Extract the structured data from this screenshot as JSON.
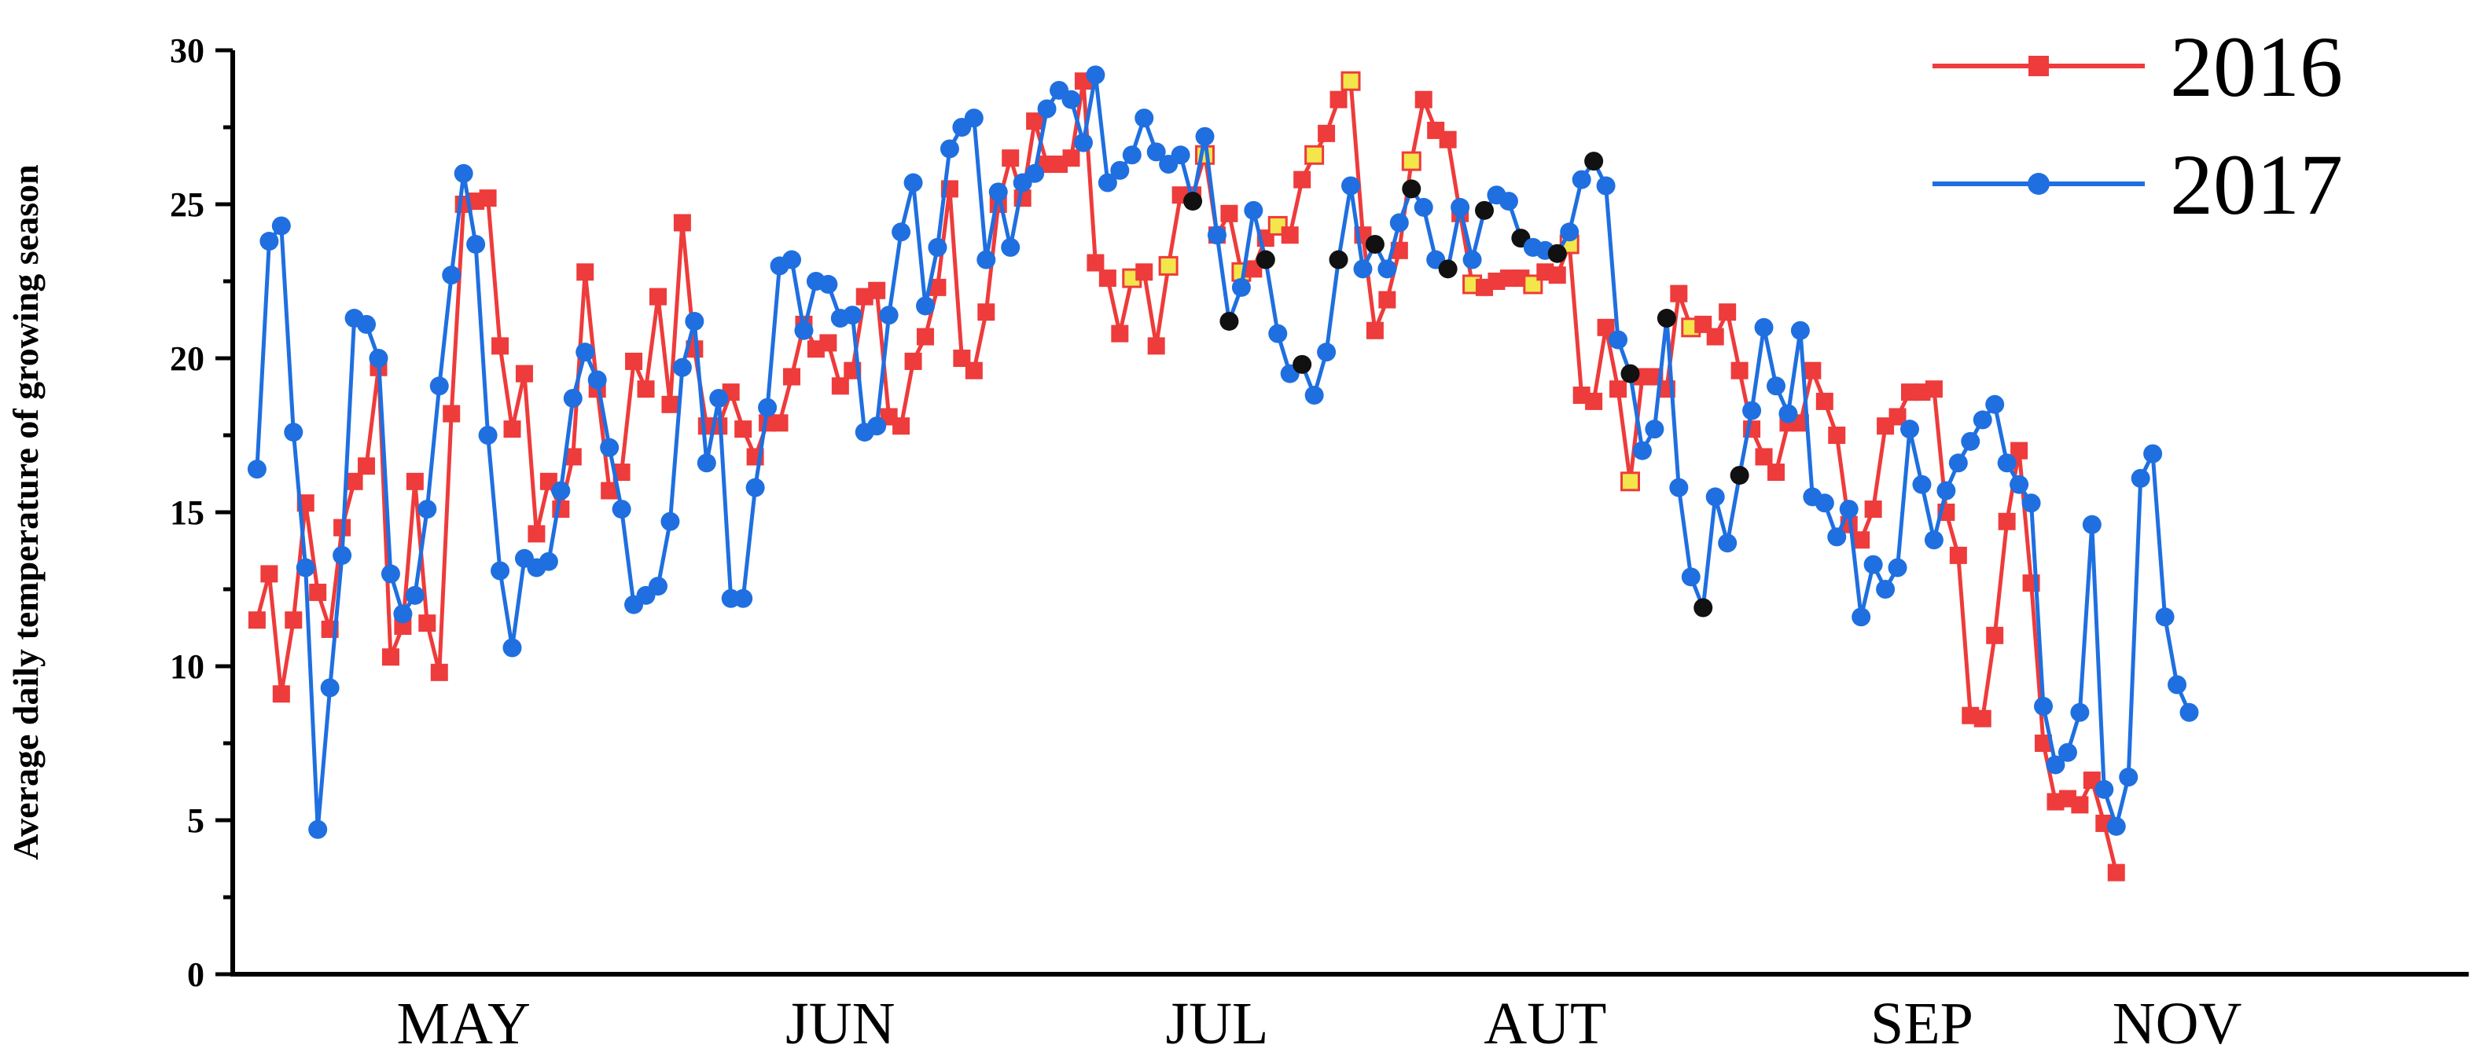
{
  "chart_data": {
    "type": "line",
    "title": "",
    "xlabel": "",
    "ylabel": "Average daily temperature of growing season",
    "ylim": [
      0,
      30
    ],
    "yticks": [
      0,
      5,
      10,
      15,
      20,
      25,
      30
    ],
    "month_labels": [
      {
        "label": "MAY",
        "x": 17
      },
      {
        "label": "JUN",
        "x": 48
      },
      {
        "label": "JUL",
        "x": 79
      },
      {
        "label": "AUT",
        "x": 106
      },
      {
        "label": "SEP",
        "x": 137
      },
      {
        "label": "NOV",
        "x": 158
      }
    ],
    "xlim": [
      -2,
      182
    ],
    "legend_position": "top-right",
    "highlight_colors": {
      "yellow": "#f2e64b",
      "black": "#111111"
    },
    "series": [
      {
        "name": "2016",
        "color": "#ee3b3b",
        "marker": "square",
        "values": [
          11.5,
          13.0,
          9.1,
          11.5,
          15.3,
          12.4,
          11.2,
          14.5,
          16.0,
          16.5,
          19.7,
          10.3,
          11.3,
          16.0,
          11.4,
          9.8,
          18.2,
          25.0,
          25.1,
          25.2,
          20.4,
          17.7,
          19.5,
          14.3,
          16.0,
          15.1,
          16.8,
          22.8,
          19.0,
          15.7,
          16.3,
          19.9,
          19.0,
          22.0,
          18.5,
          24.4,
          20.3,
          17.8,
          17.8,
          18.9,
          17.7,
          16.8,
          17.9,
          17.9,
          19.4,
          21.1,
          20.3,
          20.5,
          19.1,
          19.6,
          22.0,
          22.2,
          18.1,
          17.8,
          19.9,
          20.7,
          22.3,
          25.5,
          20.0,
          19.6,
          21.5,
          25.0,
          26.5,
          25.2,
          27.7,
          26.3,
          26.3,
          26.5,
          29.0,
          23.1,
          22.6,
          20.8,
          22.6,
          22.8,
          20.4,
          23.0,
          25.3,
          25.3,
          26.6,
          24.0,
          24.7,
          22.8,
          22.9,
          23.9,
          24.3,
          24.0,
          25.8,
          26.6,
          27.3,
          28.4,
          29.0,
          24.0,
          20.9,
          21.9,
          23.5,
          26.4,
          28.4,
          27.4,
          27.1,
          24.7,
          22.4,
          22.3,
          22.5,
          22.6,
          22.6,
          22.4,
          22.8,
          22.7,
          23.7,
          18.8,
          18.6,
          21.0,
          19.0,
          16.0,
          19.4,
          19.4,
          19.0,
          22.1,
          21.0,
          21.1,
          20.7,
          21.5,
          19.6,
          17.7,
          16.8,
          16.3,
          17.9,
          17.9,
          19.6,
          18.6,
          17.5,
          14.6,
          14.1,
          15.1,
          17.8,
          18.1,
          18.9,
          18.9,
          19.0,
          15.0,
          13.6,
          8.4,
          8.3,
          11.0,
          14.7,
          17.0,
          12.7,
          7.5,
          5.6,
          5.7,
          5.5,
          6.3,
          4.9,
          3.3
        ],
        "highlights": {
          "yellow": [
            72,
            75,
            78,
            81,
            84,
            87,
            90,
            95,
            100,
            105,
            108,
            113,
            118
          ],
          "black": []
        }
      },
      {
        "name": "2017",
        "color": "#1f6fe0",
        "marker": "circle",
        "values": [
          16.4,
          23.8,
          24.3,
          17.6,
          13.2,
          4.7,
          9.3,
          13.6,
          21.3,
          21.1,
          20.0,
          13.0,
          11.7,
          12.3,
          15.1,
          19.1,
          22.7,
          26.0,
          23.7,
          17.5,
          13.1,
          10.6,
          13.5,
          13.2,
          13.4,
          15.7,
          18.7,
          20.2,
          19.3,
          17.1,
          15.1,
          12.0,
          12.3,
          12.6,
          14.7,
          19.7,
          21.2,
          16.6,
          18.7,
          12.2,
          12.2,
          15.8,
          18.4,
          23.0,
          23.2,
          20.9,
          22.5,
          22.4,
          21.3,
          21.4,
          17.6,
          17.8,
          21.4,
          24.1,
          25.7,
          21.7,
          23.6,
          26.8,
          27.5,
          27.8,
          23.2,
          25.4,
          23.6,
          25.7,
          26.0,
          28.1,
          28.7,
          28.4,
          27.0,
          29.2,
          25.7,
          26.1,
          26.6,
          27.8,
          26.7,
          26.3,
          26.6,
          25.1,
          27.2,
          24.0,
          21.2,
          22.3,
          24.8,
          23.2,
          20.8,
          19.5,
          19.8,
          18.8,
          20.2,
          23.2,
          25.6,
          22.9,
          23.7,
          22.9,
          24.4,
          25.5,
          24.9,
          23.2,
          22.9,
          24.9,
          23.2,
          24.8,
          25.3,
          25.1,
          23.9,
          23.6,
          23.5,
          23.4,
          24.1,
          25.8,
          26.4,
          25.6,
          20.6,
          19.5,
          17.0,
          17.7,
          21.3,
          15.8,
          12.9,
          11.9,
          15.5,
          14.0,
          16.2,
          18.3,
          21.0,
          19.1,
          18.2,
          20.9,
          15.5,
          15.3,
          14.2,
          15.1,
          11.6,
          13.3,
          12.5,
          13.2,
          17.7,
          15.9,
          14.1,
          15.7,
          16.6,
          17.3,
          18.0,
          18.5,
          16.6,
          15.9,
          15.3,
          8.7,
          6.8,
          7.2,
          8.5,
          14.6,
          6.0,
          4.8,
          6.4,
          16.1,
          16.9,
          11.6,
          9.4,
          8.5
        ],
        "highlights": {
          "yellow": [],
          "black": [
            77,
            80,
            83,
            86,
            89,
            92,
            95,
            98,
            101,
            104,
            107,
            110,
            113,
            116,
            119,
            122
          ]
        }
      }
    ]
  }
}
